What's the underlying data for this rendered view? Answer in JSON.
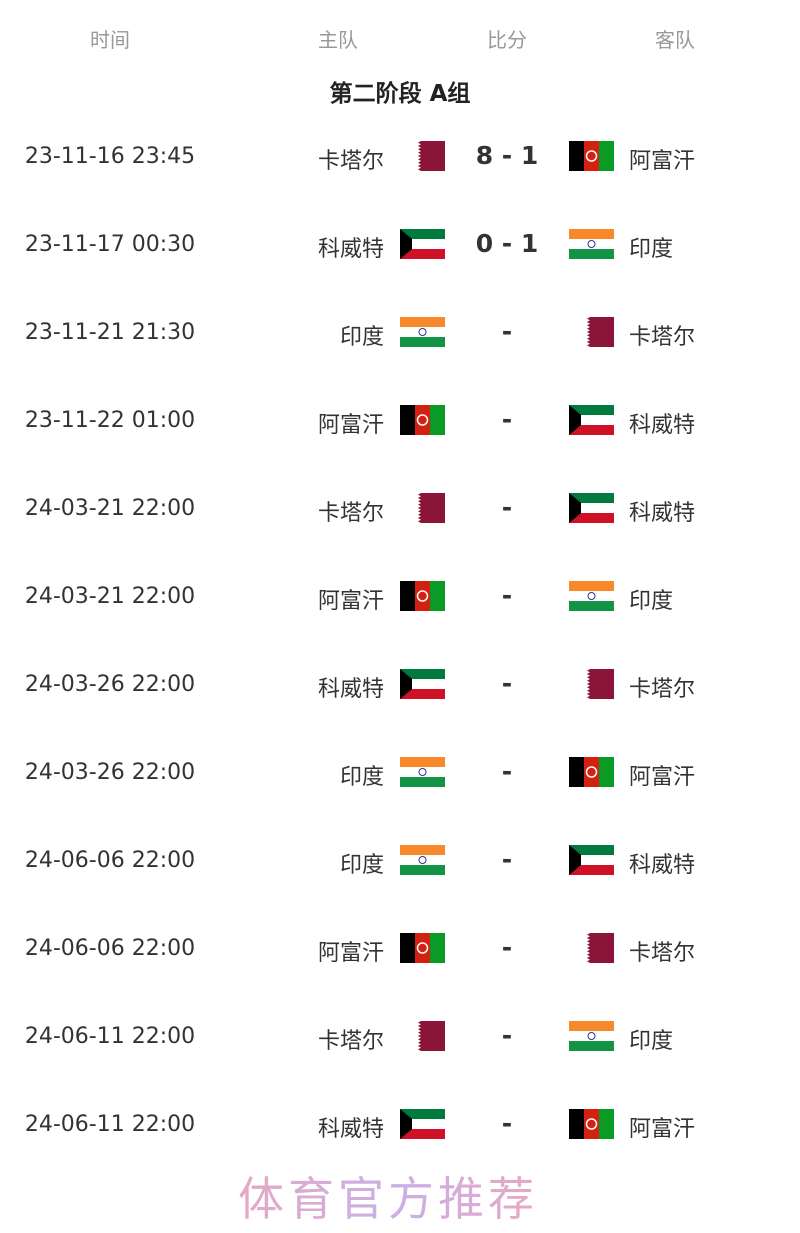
{
  "header": {
    "time": "时间",
    "home": "主队",
    "score": "比分",
    "away": "客队"
  },
  "title": "第二阶段 A组",
  "matches": [
    {
      "time": "23-11-16 23:45",
      "home": "卡塔尔",
      "home_flag": "qatar",
      "score": "8 - 1",
      "away": "阿富汗",
      "away_flag": "afghanistan"
    },
    {
      "time": "23-11-17 00:30",
      "home": "科威特",
      "home_flag": "kuwait",
      "score": "0 - 1",
      "away": "印度",
      "away_flag": "india"
    },
    {
      "time": "23-11-21 21:30",
      "home": "印度",
      "home_flag": "india",
      "score": "-",
      "away": "卡塔尔",
      "away_flag": "qatar"
    },
    {
      "time": "23-11-22 01:00",
      "home": "阿富汗",
      "home_flag": "afghanistan",
      "score": "-",
      "away": "科威特",
      "away_flag": "kuwait"
    },
    {
      "time": "24-03-21 22:00",
      "home": "卡塔尔",
      "home_flag": "qatar",
      "score": "-",
      "away": "科威特",
      "away_flag": "kuwait"
    },
    {
      "time": "24-03-21 22:00",
      "home": "阿富汗",
      "home_flag": "afghanistan",
      "score": "-",
      "away": "印度",
      "away_flag": "india"
    },
    {
      "time": "24-03-26 22:00",
      "home": "科威特",
      "home_flag": "kuwait",
      "score": "-",
      "away": "卡塔尔",
      "away_flag": "qatar"
    },
    {
      "time": "24-03-26 22:00",
      "home": "印度",
      "home_flag": "india",
      "score": "-",
      "away": "阿富汗",
      "away_flag": "afghanistan"
    },
    {
      "time": "24-06-06 22:00",
      "home": "印度",
      "home_flag": "india",
      "score": "-",
      "away": "科威特",
      "away_flag": "kuwait"
    },
    {
      "time": "24-06-06 22:00",
      "home": "阿富汗",
      "home_flag": "afghanistan",
      "score": "-",
      "away": "卡塔尔",
      "away_flag": "qatar"
    },
    {
      "time": "24-06-11 22:00",
      "home": "卡塔尔",
      "home_flag": "qatar",
      "score": "-",
      "away": "印度",
      "away_flag": "india"
    },
    {
      "time": "24-06-11 22:00",
      "home": "科威特",
      "home_flag": "kuwait",
      "score": "-",
      "away": "阿富汗",
      "away_flag": "afghanistan"
    }
  ],
  "watermark": "体育官方推荐"
}
